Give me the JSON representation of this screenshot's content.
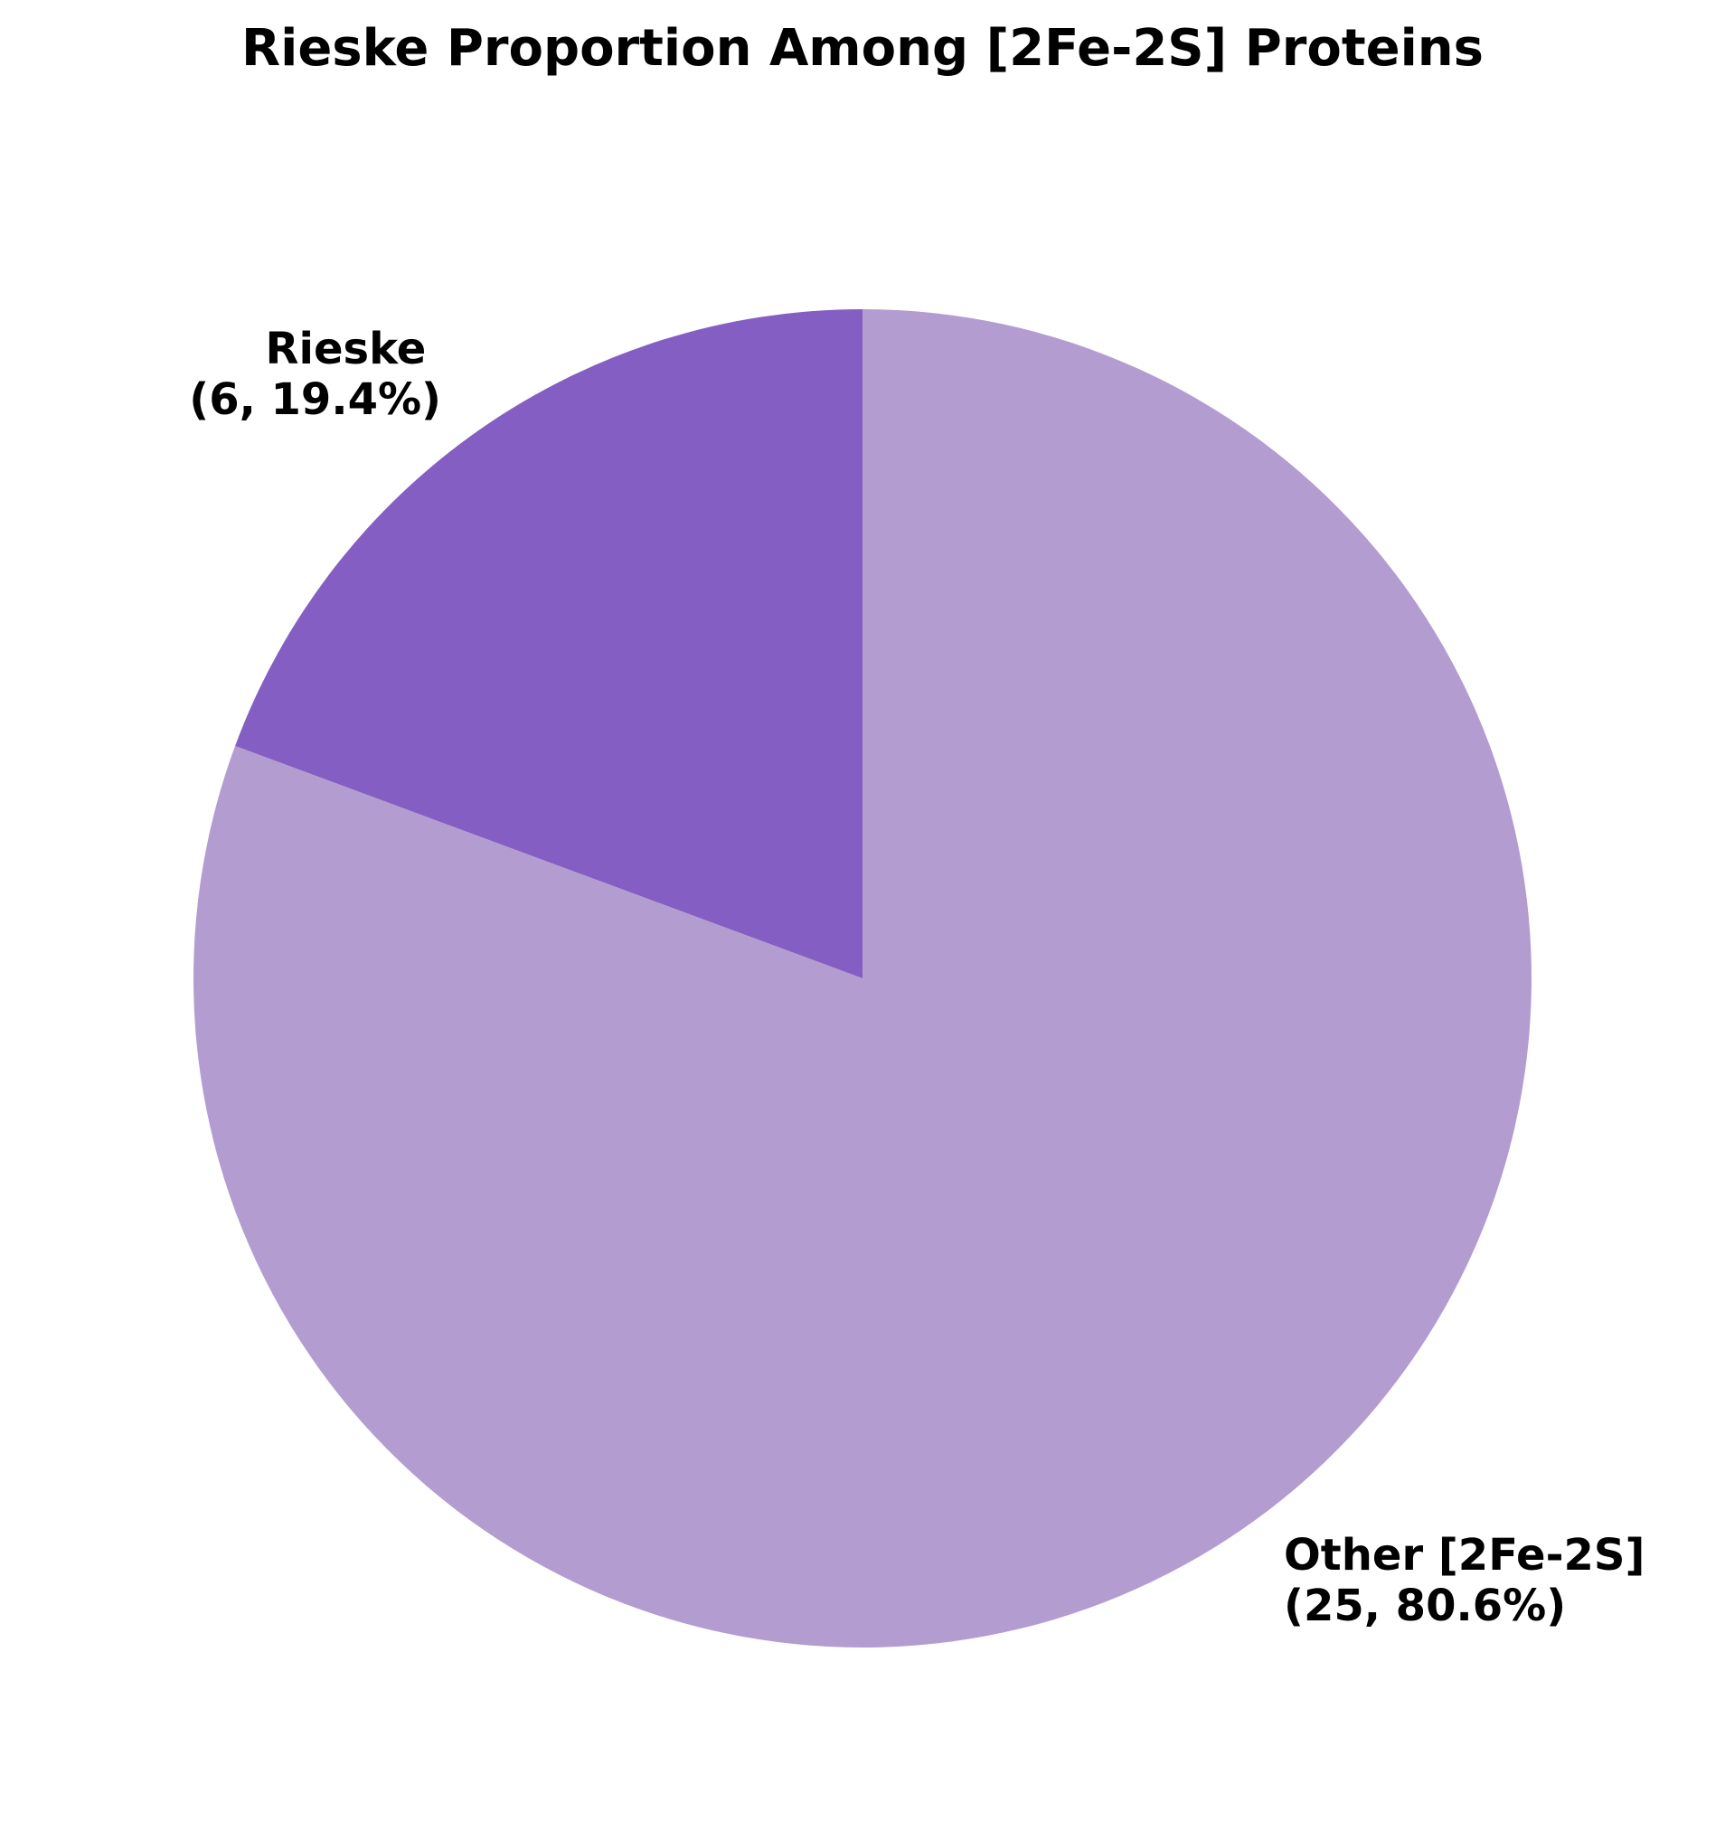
{
  "chart_data": {
    "type": "pie",
    "title": "Rieske Proportion Among [2Fe-2S] Proteins",
    "start_angle_deg": 90,
    "direction": "counterclockwise",
    "slices": [
      {
        "name": "Rieske",
        "value": 6,
        "percent": 19.4,
        "label_line1": "Rieske",
        "label_line2": "(6, 19.4%)",
        "color": "#845EC2"
      },
      {
        "name": "Other [2Fe-2S]",
        "value": 25,
        "percent": 80.6,
        "label_line1": "Other [2Fe-2S]",
        "label_line2": "(25, 80.6%)",
        "color": "#B39CD0"
      }
    ]
  }
}
